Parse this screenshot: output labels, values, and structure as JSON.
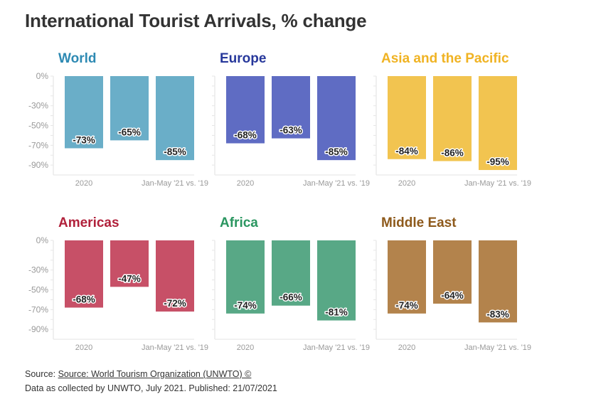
{
  "title": "International Tourist Arrivals, % change",
  "source": {
    "prefix": "Source: ",
    "link": "Source: World Tourism Organization (UNWTO) ©",
    "note": "Data as collected by UNWTO, July 2021. Published: 21/07/2021"
  },
  "colors": {
    "World": "#6aaec8",
    "Europe": "#5f6cc3",
    "Asia and the Pacific": "#f2c450",
    "Americas": "#c75067",
    "Africa": "#58a886",
    "Middle East": "#b3834c",
    "World_title": "#2e8ab3",
    "Europe_title": "#27389b",
    "Asia and the Pacific_title": "#f0b323",
    "Americas_title": "#b1213b",
    "Africa_title": "#2a9660",
    "Middle East_title": "#8e5a1c"
  },
  "chart_data": [
    {
      "type": "bar",
      "title": "World",
      "categories": [
        "2020",
        "",
        "Jan-May '21 vs. '19"
      ],
      "values": [
        -73,
        -65,
        -85
      ],
      "labels": [
        "-73%",
        "-65%",
        "-85%"
      ],
      "ylim": [
        -95,
        0
      ],
      "yticks": [
        0,
        -30,
        -50,
        -70,
        -90
      ],
      "ytick_labels": [
        "0%",
        "-30%",
        "-50%",
        "-70%",
        "-90%"
      ]
    },
    {
      "type": "bar",
      "title": "Europe",
      "categories": [
        "2020",
        "",
        "Jan-May '21 vs. '19"
      ],
      "values": [
        -68,
        -63,
        -85
      ],
      "labels": [
        "-68%",
        "-63%",
        "-85%"
      ],
      "ylim": [
        -95,
        0
      ]
    },
    {
      "type": "bar",
      "title": "Asia and the Pacific",
      "categories": [
        "2020",
        "",
        "Jan-May '21 vs. '19"
      ],
      "values": [
        -84,
        -86,
        -95
      ],
      "labels": [
        "-84%",
        "-86%",
        "-95%"
      ],
      "ylim": [
        -95,
        0
      ]
    },
    {
      "type": "bar",
      "title": "Americas",
      "categories": [
        "2020",
        "",
        "Jan-May '21 vs. '19"
      ],
      "values": [
        -68,
        -47,
        -72
      ],
      "labels": [
        "-68%",
        "-47%",
        "-72%"
      ],
      "ylim": [
        -95,
        0
      ],
      "yticks": [
        0,
        -30,
        -50,
        -70,
        -90
      ],
      "ytick_labels": [
        "0%",
        "-30%",
        "-50%",
        "-70%",
        "-90%"
      ]
    },
    {
      "type": "bar",
      "title": "Africa",
      "categories": [
        "2020",
        "",
        "Jan-May '21 vs. '19"
      ],
      "values": [
        -74,
        -66,
        -81
      ],
      "labels": [
        "-74%",
        "-66%",
        "-81%"
      ],
      "ylim": [
        -95,
        0
      ]
    },
    {
      "type": "bar",
      "title": "Middle East",
      "categories": [
        "2020",
        "",
        "Jan-May '21 vs. '19"
      ],
      "values": [
        -74,
        -64,
        -83
      ],
      "labels": [
        "-74%",
        "-64%",
        "-83%"
      ],
      "ylim": [
        -95,
        0
      ]
    }
  ]
}
